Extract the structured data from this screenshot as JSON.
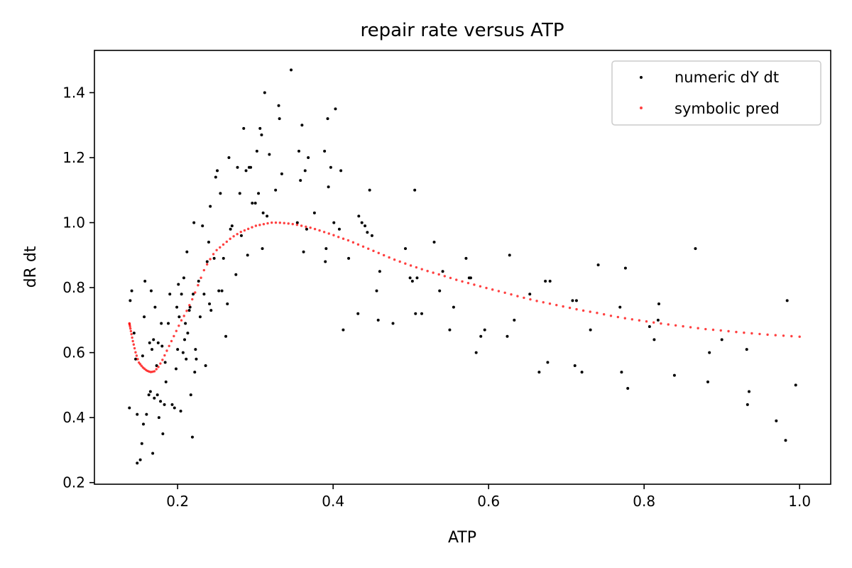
{
  "chart_data": {
    "type": "scatter",
    "title": "repair rate versus ATP",
    "xlabel": "ATP",
    "ylabel": "dR dt",
    "xlim": [
      0.093,
      1.04
    ],
    "ylim": [
      0.195,
      1.53
    ],
    "xticks": [
      0.2,
      0.4,
      0.6,
      0.8,
      1.0
    ],
    "xtick_labels": [
      "0.2",
      "0.4",
      "0.6",
      "0.8",
      "1.0"
    ],
    "yticks": [
      0.2,
      0.4,
      0.6,
      0.8,
      1.0,
      1.2,
      1.4
    ],
    "ytick_labels": [
      "0.2",
      "0.4",
      "0.6",
      "0.8",
      "1.0",
      "1.2",
      "1.4"
    ],
    "grid": false,
    "legend_position": "top-right",
    "series": [
      {
        "name": "numeric dY dt",
        "color": "#000000",
        "marker": "dot",
        "points": [
          [
            0.138,
            0.43
          ],
          [
            0.139,
            0.76
          ],
          [
            0.141,
            0.79
          ],
          [
            0.144,
            0.66
          ],
          [
            0.146,
            0.58
          ],
          [
            0.148,
            0.41
          ],
          [
            0.148,
            0.26
          ],
          [
            0.152,
            0.27
          ],
          [
            0.154,
            0.32
          ],
          [
            0.155,
            0.59
          ],
          [
            0.156,
            0.38
          ],
          [
            0.157,
            0.71
          ],
          [
            0.158,
            0.82
          ],
          [
            0.16,
            0.41
          ],
          [
            0.163,
            0.47
          ],
          [
            0.164,
            0.63
          ],
          [
            0.165,
            0.48
          ],
          [
            0.166,
            0.79
          ],
          [
            0.167,
            0.61
          ],
          [
            0.168,
            0.29
          ],
          [
            0.169,
            0.64
          ],
          [
            0.17,
            0.46
          ],
          [
            0.171,
            0.74
          ],
          [
            0.173,
            0.56
          ],
          [
            0.174,
            0.47
          ],
          [
            0.175,
            0.63
          ],
          [
            0.176,
            0.4
          ],
          [
            0.178,
            0.45
          ],
          [
            0.179,
            0.69
          ],
          [
            0.18,
            0.62
          ],
          [
            0.181,
            0.35
          ],
          [
            0.183,
            0.44
          ],
          [
            0.184,
            0.57
          ],
          [
            0.185,
            0.51
          ],
          [
            0.188,
            0.69
          ],
          [
            0.19,
            0.78
          ],
          [
            0.193,
            0.44
          ],
          [
            0.196,
            0.43
          ],
          [
            0.198,
            0.55
          ],
          [
            0.199,
            0.74
          ],
          [
            0.2,
            0.61
          ],
          [
            0.201,
            0.81
          ],
          [
            0.202,
            0.71
          ],
          [
            0.204,
            0.42
          ],
          [
            0.205,
            0.78
          ],
          [
            0.207,
            0.6
          ],
          [
            0.208,
            0.83
          ],
          [
            0.209,
            0.64
          ],
          [
            0.21,
            0.69
          ],
          [
            0.211,
            0.58
          ],
          [
            0.212,
            0.91
          ],
          [
            0.213,
            0.66
          ],
          [
            0.215,
            0.73
          ],
          [
            0.216,
            0.74
          ],
          [
            0.217,
            0.47
          ],
          [
            0.219,
            0.34
          ],
          [
            0.22,
            0.78
          ],
          [
            0.221,
            1.0
          ],
          [
            0.222,
            0.54
          ],
          [
            0.223,
            0.61
          ],
          [
            0.224,
            0.58
          ],
          [
            0.227,
            0.82
          ],
          [
            0.229,
            0.71
          ],
          [
            0.232,
            0.99
          ],
          [
            0.234,
            0.78
          ],
          [
            0.236,
            0.56
          ],
          [
            0.238,
            0.88
          ],
          [
            0.24,
            0.94
          ],
          [
            0.241,
            0.75
          ],
          [
            0.242,
            1.05
          ],
          [
            0.243,
            0.73
          ],
          [
            0.247,
            0.89
          ],
          [
            0.249,
            1.14
          ],
          [
            0.251,
            1.16
          ],
          [
            0.253,
            0.79
          ],
          [
            0.255,
            1.09
          ],
          [
            0.257,
            0.79
          ],
          [
            0.259,
            0.89
          ],
          [
            0.262,
            0.65
          ],
          [
            0.264,
            0.75
          ],
          [
            0.266,
            1.2
          ],
          [
            0.268,
            0.98
          ],
          [
            0.27,
            0.99
          ],
          [
            0.275,
            0.84
          ],
          [
            0.277,
            1.17
          ],
          [
            0.28,
            1.09
          ],
          [
            0.282,
            0.96
          ],
          [
            0.285,
            1.29
          ],
          [
            0.288,
            1.16
          ],
          [
            0.29,
            0.9
          ],
          [
            0.292,
            1.17
          ],
          [
            0.294,
            1.17
          ],
          [
            0.296,
            1.06
          ],
          [
            0.3,
            1.06
          ],
          [
            0.302,
            1.22
          ],
          [
            0.304,
            1.09
          ],
          [
            0.306,
            1.29
          ],
          [
            0.308,
            1.27
          ],
          [
            0.309,
            0.92
          ],
          [
            0.31,
            1.03
          ],
          [
            0.312,
            1.4
          ],
          [
            0.315,
            1.02
          ],
          [
            0.318,
            1.21
          ],
          [
            0.326,
            1.1
          ],
          [
            0.33,
            1.36
          ],
          [
            0.331,
            1.32
          ],
          [
            0.334,
            1.15
          ],
          [
            0.346,
            1.47
          ],
          [
            0.354,
            1.0
          ],
          [
            0.356,
            1.22
          ],
          [
            0.358,
            1.13
          ],
          [
            0.36,
            1.3
          ],
          [
            0.362,
            0.91
          ],
          [
            0.364,
            1.16
          ],
          [
            0.366,
            0.98
          ],
          [
            0.368,
            1.2
          ],
          [
            0.376,
            1.03
          ],
          [
            0.389,
            1.22
          ],
          [
            0.39,
            0.88
          ],
          [
            0.391,
            0.92
          ],
          [
            0.393,
            1.32
          ],
          [
            0.394,
            1.11
          ],
          [
            0.397,
            1.17
          ],
          [
            0.401,
            1.0
          ],
          [
            0.403,
            1.35
          ],
          [
            0.408,
            0.98
          ],
          [
            0.41,
            1.16
          ],
          [
            0.413,
            0.67
          ],
          [
            0.42,
            0.89
          ],
          [
            0.432,
            0.72
          ],
          [
            0.433,
            1.02
          ],
          [
            0.437,
            1.0
          ],
          [
            0.441,
            0.99
          ],
          [
            0.444,
            0.97
          ],
          [
            0.447,
            1.1
          ],
          [
            0.45,
            0.96
          ],
          [
            0.456,
            0.79
          ],
          [
            0.458,
            0.7
          ],
          [
            0.46,
            0.85
          ],
          [
            0.477,
            0.69
          ],
          [
            0.493,
            0.92
          ],
          [
            0.499,
            0.83
          ],
          [
            0.502,
            0.82
          ],
          [
            0.505,
            1.1
          ],
          [
            0.506,
            0.72
          ],
          [
            0.508,
            0.83
          ],
          [
            0.514,
            0.72
          ],
          [
            0.53,
            0.94
          ],
          [
            0.537,
            0.79
          ],
          [
            0.541,
            0.85
          ],
          [
            0.55,
            0.67
          ],
          [
            0.555,
            0.74
          ],
          [
            0.571,
            0.89
          ],
          [
            0.575,
            0.83
          ],
          [
            0.577,
            0.83
          ],
          [
            0.584,
            0.6
          ],
          [
            0.59,
            0.65
          ],
          [
            0.595,
            0.67
          ],
          [
            0.624,
            0.65
          ],
          [
            0.627,
            0.9
          ],
          [
            0.633,
            0.7
          ],
          [
            0.653,
            0.78
          ],
          [
            0.665,
            0.54
          ],
          [
            0.673,
            0.82
          ],
          [
            0.676,
            0.57
          ],
          [
            0.679,
            0.82
          ],
          [
            0.708,
            0.76
          ],
          [
            0.711,
            0.56
          ],
          [
            0.713,
            0.76
          ],
          [
            0.72,
            0.54
          ],
          [
            0.731,
            0.67
          ],
          [
            0.741,
            0.87
          ],
          [
            0.769,
            0.74
          ],
          [
            0.771,
            0.54
          ],
          [
            0.776,
            0.86
          ],
          [
            0.779,
            0.49
          ],
          [
            0.807,
            0.68
          ],
          [
            0.813,
            0.64
          ],
          [
            0.818,
            0.7
          ],
          [
            0.819,
            0.75
          ],
          [
            0.839,
            0.53
          ],
          [
            0.866,
            0.92
          ],
          [
            0.882,
            0.51
          ],
          [
            0.884,
            0.6
          ],
          [
            0.9,
            0.64
          ],
          [
            0.932,
            0.61
          ],
          [
            0.933,
            0.44
          ],
          [
            0.935,
            0.48
          ],
          [
            0.97,
            0.39
          ],
          [
            0.982,
            0.33
          ],
          [
            0.984,
            0.76
          ],
          [
            0.995,
            0.5
          ]
        ]
      },
      {
        "name": "symbolic pred",
        "color": "#ff0000",
        "marker": "dot",
        "curve": {
          "x": [
            0.138,
            0.142,
            0.146,
            0.15,
            0.155,
            0.16,
            0.165,
            0.17,
            0.175,
            0.18,
            0.185,
            0.19,
            0.195,
            0.2,
            0.205,
            0.21,
            0.215,
            0.22,
            0.225,
            0.23,
            0.235,
            0.24,
            0.245,
            0.25,
            0.255,
            0.26,
            0.265,
            0.27,
            0.275,
            0.28,
            0.29,
            0.3,
            0.31,
            0.32,
            0.33,
            0.34,
            0.35,
            0.36,
            0.37,
            0.38,
            0.39,
            0.4,
            0.41,
            0.42,
            0.44,
            0.46,
            0.48,
            0.5,
            0.52,
            0.54,
            0.56,
            0.58,
            0.6,
            0.62,
            0.64,
            0.66,
            0.68,
            0.7,
            0.72,
            0.74,
            0.76,
            0.78,
            0.8,
            0.82,
            0.84,
            0.86,
            0.88,
            0.9,
            0.92,
            0.94,
            0.96,
            0.98,
            1.0
          ],
          "y": [
            0.69,
            0.64,
            0.6,
            0.57,
            0.555,
            0.545,
            0.54,
            0.542,
            0.555,
            0.575,
            0.6,
            0.625,
            0.65,
            0.675,
            0.7,
            0.72,
            0.745,
            0.77,
            0.8,
            0.83,
            0.86,
            0.88,
            0.9,
            0.915,
            0.925,
            0.935,
            0.945,
            0.955,
            0.962,
            0.97,
            0.98,
            0.99,
            0.995,
            1.0,
            1.0,
            0.998,
            0.995,
            0.99,
            0.985,
            0.978,
            0.97,
            0.962,
            0.953,
            0.945,
            0.925,
            0.905,
            0.885,
            0.868,
            0.852,
            0.838,
            0.823,
            0.81,
            0.797,
            0.785,
            0.772,
            0.76,
            0.75,
            0.74,
            0.73,
            0.722,
            0.712,
            0.704,
            0.697,
            0.69,
            0.684,
            0.678,
            0.672,
            0.668,
            0.663,
            0.659,
            0.655,
            0.652,
            0.649
          ]
        },
        "sample_count": 150
      }
    ]
  }
}
